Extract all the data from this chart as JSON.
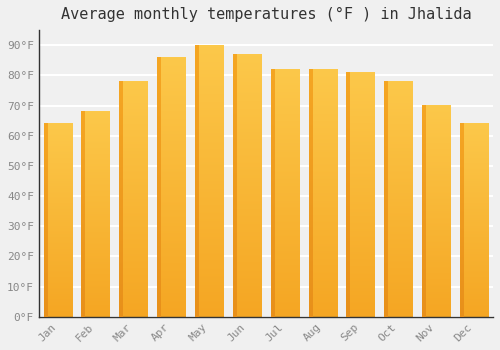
{
  "title": "Average monthly temperatures (°F ) in Jhalida",
  "months": [
    "Jan",
    "Feb",
    "Mar",
    "Apr",
    "May",
    "Jun",
    "Jul",
    "Aug",
    "Sep",
    "Oct",
    "Nov",
    "Dec"
  ],
  "values": [
    64,
    68,
    78,
    86,
    90,
    87,
    82,
    82,
    81,
    78,
    70,
    64
  ],
  "bar_color_top": "#FCC84A",
  "bar_color_bottom": "#F5A623",
  "bar_color_left_edge": "#E8901A",
  "ylim": [
    0,
    95
  ],
  "yticks": [
    0,
    10,
    20,
    30,
    40,
    50,
    60,
    70,
    80,
    90
  ],
  "ytick_labels": [
    "0°F",
    "10°F",
    "20°F",
    "30°F",
    "40°F",
    "50°F",
    "60°F",
    "70°F",
    "80°F",
    "90°F"
  ],
  "background_color": "#f0f0f0",
  "plot_bg_color": "#f0f0f0",
  "grid_color": "#ffffff",
  "title_fontsize": 11,
  "tick_fontsize": 8,
  "font_family": "monospace",
  "tick_color": "#888888",
  "spine_color": "#333333"
}
